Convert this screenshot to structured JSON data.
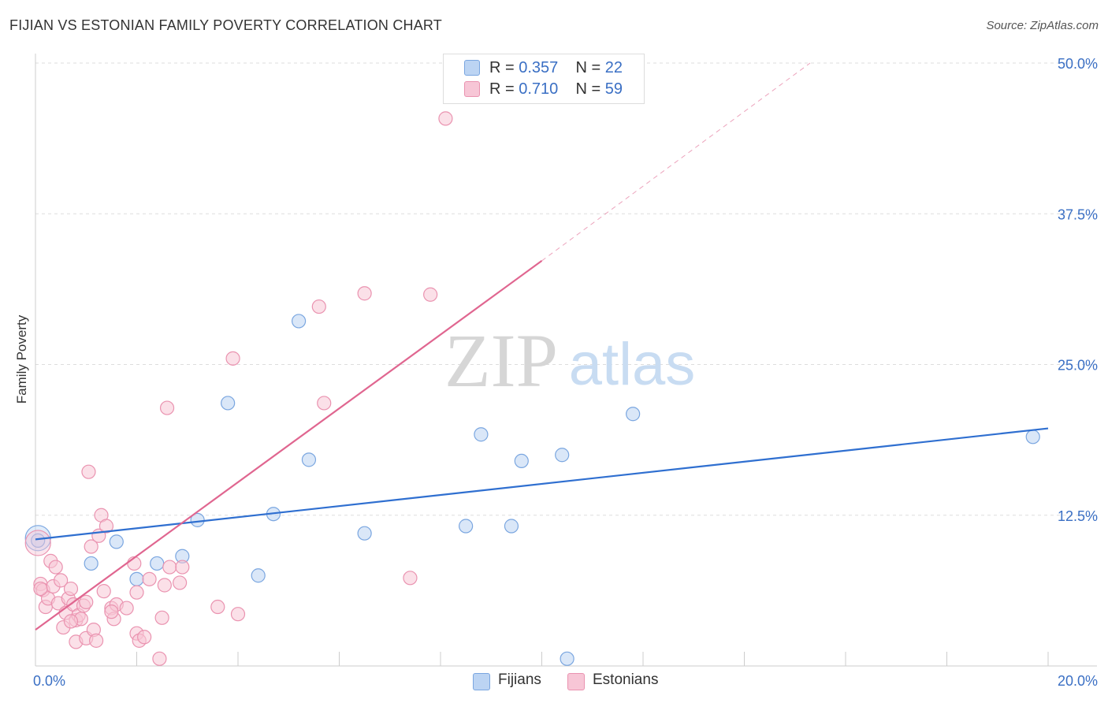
{
  "header": {
    "title": "FIJIAN VS ESTONIAN FAMILY POVERTY CORRELATION CHART",
    "source": "Source: ZipAtlas.com"
  },
  "watermark": {
    "zip": "ZIP",
    "atlas": "atlas"
  },
  "legend": {
    "fijians": {
      "r_label": "R = ",
      "r_value": "0.357",
      "n_label": "N = ",
      "n_value": "22"
    },
    "estonians": {
      "r_label": "R = ",
      "r_value": "0.710",
      "n_label": "N = ",
      "n_value": "59"
    }
  },
  "bottom_legend": {
    "fijians": "Fijians",
    "estonians": "Estonians"
  },
  "colors": {
    "fijian_fill": "#bcd4f3",
    "fijian_stroke": "#7aa6e0",
    "fijian_line": "#2f6fd0",
    "estonian_fill": "#f7c6d6",
    "estonian_stroke": "#ea93b0",
    "estonian_line": "#e06690",
    "tick_label": "#3a6fc4",
    "grid": "#dddddd"
  },
  "chart_data": {
    "type": "scatter",
    "title": "FIJIAN VS ESTONIAN FAMILY POVERTY CORRELATION CHART",
    "xlabel": "",
    "ylabel": "Family Poverty",
    "xlim": [
      0,
      20
    ],
    "ylim": [
      0,
      50
    ],
    "x_tick_labels": [
      {
        "value": 0,
        "label": "0.0%"
      },
      {
        "value": 20,
        "label": "20.0%"
      }
    ],
    "y_tick_labels": [
      {
        "value": 12.5,
        "label": "12.5%"
      },
      {
        "value": 25,
        "label": "25.0%"
      },
      {
        "value": 37.5,
        "label": "37.5%"
      },
      {
        "value": 50,
        "label": "50.0%"
      }
    ],
    "series": [
      {
        "name": "Fijians",
        "r": 0.357,
        "n": 22,
        "trend": {
          "x": [
            0,
            20
          ],
          "y": [
            10.5,
            19.7
          ],
          "dash_to": null
        },
        "points": [
          [
            0.05,
            10.6
          ],
          [
            1.1,
            8.5
          ],
          [
            1.6,
            10.3
          ],
          [
            2.0,
            7.2
          ],
          [
            2.4,
            8.5
          ],
          [
            2.9,
            9.1
          ],
          [
            3.2,
            12.1
          ],
          [
            3.8,
            21.8
          ],
          [
            4.4,
            7.5
          ],
          [
            4.7,
            12.6
          ],
          [
            5.2,
            28.6
          ],
          [
            5.4,
            17.1
          ],
          [
            6.5,
            11.0
          ],
          [
            8.5,
            11.6
          ],
          [
            8.8,
            19.2
          ],
          [
            9.4,
            11.6
          ],
          [
            9.6,
            17.0
          ],
          [
            10.4,
            17.5
          ],
          [
            11.8,
            20.9
          ],
          [
            19.7,
            19.0
          ],
          [
            10.5,
            0.6
          ],
          [
            0.05,
            10.4
          ]
        ]
      },
      {
        "name": "Estonians",
        "r": 0.71,
        "n": 59,
        "trend": {
          "x": [
            0,
            10.0
          ],
          "y": [
            3.0,
            33.6
          ],
          "dash_to": [
            15.3,
            50.0
          ]
        },
        "points": [
          [
            0.05,
            10.2
          ],
          [
            0.1,
            6.8
          ],
          [
            0.15,
            6.3
          ],
          [
            0.2,
            4.9
          ],
          [
            0.25,
            5.6
          ],
          [
            0.3,
            8.7
          ],
          [
            0.35,
            6.6
          ],
          [
            0.4,
            8.2
          ],
          [
            0.45,
            5.2
          ],
          [
            0.5,
            7.1
          ],
          [
            0.55,
            3.2
          ],
          [
            0.6,
            4.4
          ],
          [
            0.65,
            5.6
          ],
          [
            0.7,
            6.4
          ],
          [
            0.75,
            5.1
          ],
          [
            0.8,
            2.0
          ],
          [
            0.8,
            3.8
          ],
          [
            0.85,
            4.2
          ],
          [
            0.9,
            3.9
          ],
          [
            0.95,
            5.0
          ],
          [
            1.0,
            5.3
          ],
          [
            1.0,
            2.3
          ],
          [
            1.05,
            16.1
          ],
          [
            1.1,
            9.9
          ],
          [
            1.15,
            3.0
          ],
          [
            1.2,
            2.1
          ],
          [
            1.25,
            10.8
          ],
          [
            1.3,
            12.5
          ],
          [
            1.35,
            6.2
          ],
          [
            1.4,
            11.6
          ],
          [
            1.5,
            4.8
          ],
          [
            1.55,
            3.9
          ],
          [
            1.6,
            5.1
          ],
          [
            1.8,
            4.8
          ],
          [
            1.95,
            8.5
          ],
          [
            2.0,
            6.1
          ],
          [
            2.0,
            2.7
          ],
          [
            2.05,
            2.1
          ],
          [
            2.15,
            2.4
          ],
          [
            2.25,
            7.2
          ],
          [
            2.45,
            0.6
          ],
          [
            2.5,
            4.0
          ],
          [
            2.55,
            6.7
          ],
          [
            2.6,
            21.4
          ],
          [
            2.65,
            8.2
          ],
          [
            2.85,
            6.9
          ],
          [
            2.9,
            8.2
          ],
          [
            3.6,
            4.9
          ],
          [
            3.9,
            25.5
          ],
          [
            4.0,
            4.3
          ],
          [
            5.6,
            29.8
          ],
          [
            5.7,
            21.8
          ],
          [
            6.5,
            30.9
          ],
          [
            7.4,
            7.3
          ],
          [
            7.8,
            30.8
          ],
          [
            8.1,
            45.4
          ],
          [
            0.1,
            6.4
          ],
          [
            1.5,
            4.5
          ],
          [
            0.7,
            3.7
          ]
        ]
      }
    ]
  }
}
